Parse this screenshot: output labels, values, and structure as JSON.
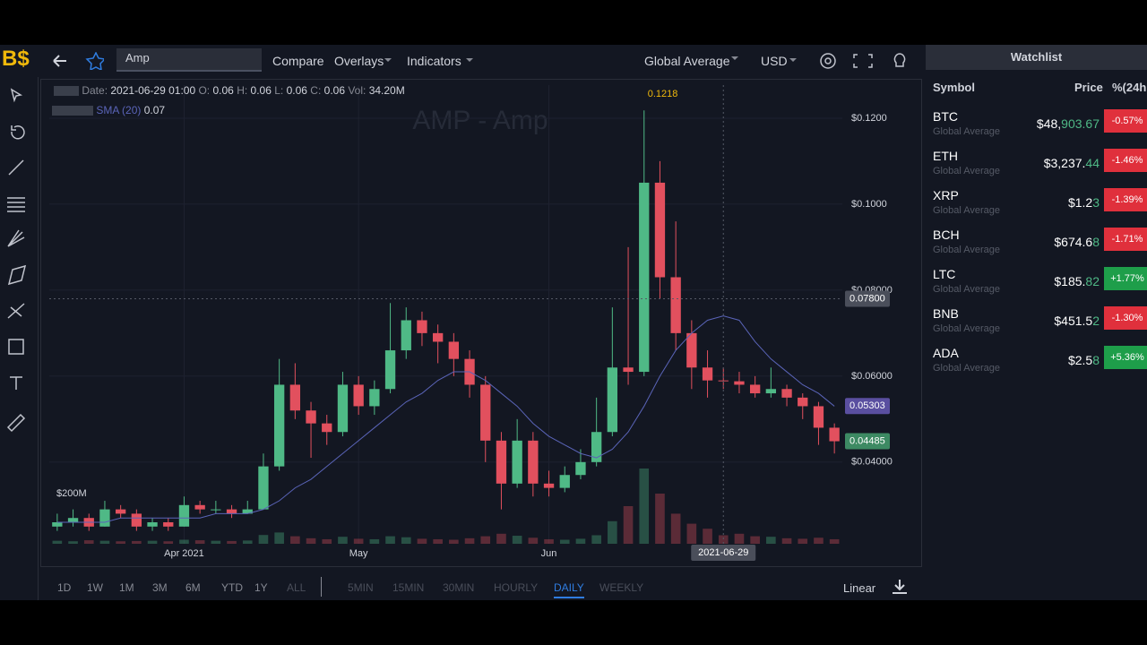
{
  "logo": "B$",
  "toolbar": {
    "search": "Amp",
    "menus": [
      "Compare",
      "Overlays",
      "Indicators"
    ],
    "source": "Global Average",
    "currency": "USD"
  },
  "legend": {
    "date_label": "Date:",
    "date": "2021-06-29 01:00",
    "o_label": "O:",
    "o": 0.06,
    "h_label": "H:",
    "h": 0.06,
    "l_label": "L:",
    "l": 0.06,
    "c_label": "C:",
    "c": 0.06,
    "vol_label": "Vol:",
    "vol": "34.20M",
    "sma_label": "SMA (20)",
    "sma": 0.07
  },
  "chart_data": {
    "type": "candlestick",
    "title": "AMP - Amp",
    "categories": [
      null,
      null,
      null,
      null,
      null,
      null,
      null,
      null,
      "Apr 2021",
      null,
      null,
      null,
      null,
      null,
      null,
      null,
      null,
      null,
      null,
      "May",
      null,
      null,
      null,
      null,
      null,
      null,
      null,
      null,
      null,
      null,
      null,
      "Jun",
      null,
      null,
      null,
      null,
      null,
      null,
      null,
      null,
      null,
      null,
      null,
      null,
      null,
      null,
      null,
      null,
      null,
      null
    ],
    "candles": [
      [
        0.025,
        0.028,
        0.024,
        0.026
      ],
      [
        0.026,
        0.029,
        0.025,
        0.027
      ],
      [
        0.027,
        0.028,
        0.024,
        0.025
      ],
      [
        0.025,
        0.031,
        0.025,
        0.029
      ],
      [
        0.029,
        0.03,
        0.027,
        0.028
      ],
      [
        0.028,
        0.029,
        0.024,
        0.025
      ],
      [
        0.025,
        0.027,
        0.024,
        0.026
      ],
      [
        0.026,
        0.027,
        0.024,
        0.025
      ],
      [
        0.025,
        0.032,
        0.025,
        0.03
      ],
      [
        0.03,
        0.031,
        0.028,
        0.029
      ],
      [
        0.029,
        0.031,
        0.028,
        0.029
      ],
      [
        0.029,
        0.03,
        0.027,
        0.028
      ],
      [
        0.028,
        0.031,
        0.028,
        0.029
      ],
      [
        0.029,
        0.042,
        0.029,
        0.039
      ],
      [
        0.039,
        0.064,
        0.038,
        0.058
      ],
      [
        0.058,
        0.063,
        0.05,
        0.052
      ],
      [
        0.052,
        0.054,
        0.041,
        0.049
      ],
      [
        0.049,
        0.051,
        0.044,
        0.047
      ],
      [
        0.047,
        0.061,
        0.046,
        0.058
      ],
      [
        0.058,
        0.06,
        0.051,
        0.053
      ],
      [
        0.053,
        0.059,
        0.051,
        0.057
      ],
      [
        0.057,
        0.077,
        0.056,
        0.066
      ],
      [
        0.066,
        0.076,
        0.064,
        0.073
      ],
      [
        0.073,
        0.075,
        0.067,
        0.07
      ],
      [
        0.07,
        0.072,
        0.063,
        0.068
      ],
      [
        0.068,
        0.07,
        0.06,
        0.064
      ],
      [
        0.064,
        0.066,
        0.055,
        0.058
      ],
      [
        0.058,
        0.06,
        0.04,
        0.045
      ],
      [
        0.045,
        0.047,
        0.029,
        0.035
      ],
      [
        0.035,
        0.05,
        0.034,
        0.045
      ],
      [
        0.045,
        0.047,
        0.032,
        0.035
      ],
      [
        0.035,
        0.038,
        0.032,
        0.034
      ],
      [
        0.034,
        0.039,
        0.033,
        0.037
      ],
      [
        0.037,
        0.043,
        0.036,
        0.04
      ],
      [
        0.04,
        0.055,
        0.039,
        0.047
      ],
      [
        0.047,
        0.076,
        0.046,
        0.062
      ],
      [
        0.062,
        0.09,
        0.058,
        0.061
      ],
      [
        0.061,
        0.1218,
        0.06,
        0.105
      ],
      [
        0.105,
        0.11,
        0.078,
        0.083
      ],
      [
        0.083,
        0.096,
        0.066,
        0.07
      ],
      [
        0.07,
        0.073,
        0.057,
        0.062
      ],
      [
        0.062,
        0.066,
        0.055,
        0.059
      ],
      [
        0.059,
        0.062,
        0.057,
        0.0588
      ],
      [
        0.0588,
        0.061,
        0.056,
        0.058
      ],
      [
        0.058,
        0.06,
        0.055,
        0.056
      ],
      [
        0.056,
        0.062,
        0.055,
        0.057
      ],
      [
        0.057,
        0.058,
        0.053,
        0.055
      ],
      [
        0.055,
        0.056,
        0.05,
        0.053
      ],
      [
        0.053,
        0.054,
        0.044,
        0.048
      ],
      [
        0.048,
        0.049,
        0.042,
        0.04485
      ]
    ],
    "sma": [
      0.026,
      0.026,
      0.026,
      0.026,
      0.027,
      0.027,
      0.027,
      0.027,
      0.027,
      0.027,
      0.028,
      0.028,
      0.028,
      0.029,
      0.031,
      0.034,
      0.036,
      0.039,
      0.042,
      0.045,
      0.048,
      0.051,
      0.054,
      0.056,
      0.059,
      0.061,
      0.061,
      0.059,
      0.056,
      0.053,
      0.049,
      0.046,
      0.044,
      0.042,
      0.041,
      0.043,
      0.047,
      0.053,
      0.06,
      0.066,
      0.07,
      0.073,
      0.074,
      0.073,
      0.068,
      0.064,
      0.061,
      0.058,
      0.056,
      0.053
    ],
    "volume": [
      12,
      10,
      14,
      12,
      10,
      11,
      12,
      10,
      16,
      14,
      12,
      11,
      13,
      35,
      45,
      30,
      22,
      18,
      28,
      20,
      18,
      30,
      26,
      20,
      18,
      16,
      22,
      30,
      40,
      32,
      24,
      18,
      16,
      20,
      34,
      90,
      150,
      300,
      200,
      120,
      80,
      60,
      34,
      40,
      30,
      28,
      22,
      20,
      24,
      18
    ],
    "ylim": [
      0.021,
      0.1277
    ],
    "yticks": [
      {
        "value": 0.12,
        "label": "$0.1200"
      },
      {
        "value": 0.1,
        "label": "$0.1000"
      },
      {
        "value": 0.08,
        "label": "$0.08000"
      },
      {
        "value": 0.06,
        "label": "$0.06000"
      },
      {
        "value": 0.04,
        "label": "$0.04000"
      }
    ],
    "vlim": [
      0,
      200
    ],
    "vticks": [
      {
        "value": 200,
        "label": "$200M"
      }
    ],
    "high_marker": 0.1218,
    "last_price": 0.04485,
    "sma_last": 0.05303,
    "crosshair": {
      "date": "2021-06-29",
      "price": {
        "value": 0.078,
        "label": "0.07800"
      }
    },
    "up_color": "#4fb986",
    "down_color": "#e2505e",
    "sma_color": "#5a64b8",
    "grid": true
  },
  "bottom_bar": {
    "ranges": [
      "1D",
      "1W",
      "1M",
      "3M",
      "6M",
      "YTD",
      "1Y",
      "ALL"
    ],
    "intervals": [
      "5MIN",
      "15MIN",
      "30MIN",
      "HOURLY",
      "DAILY",
      "WEEKLY"
    ],
    "scale": "Linear"
  },
  "watchlist": {
    "title": "Watchlist",
    "columns": [
      "Symbol",
      "Price",
      "%(24h"
    ],
    "rows": [
      {
        "symbol": "BTC",
        "source": "Global Average",
        "price": "$48,",
        "price_tail": "903.67",
        "change": "-0.57%"
      },
      {
        "symbol": "ETH",
        "source": "Global Average",
        "price": "$3,237.",
        "price_tail": "44",
        "change": "-1.46%"
      },
      {
        "symbol": "XRP",
        "source": "Global Average",
        "price": "$1.2",
        "price_tail": "3",
        "change": "-1.39%"
      },
      {
        "symbol": "BCH",
        "source": "Global Average",
        "price": "$674.6",
        "price_tail": "8",
        "change": "-1.71%"
      },
      {
        "symbol": "LTC",
        "source": "Global Average",
        "price": "$185.",
        "price_tail": "82",
        "change": "+1.77%"
      },
      {
        "symbol": "BNB",
        "source": "Global Average",
        "price": "$451.5",
        "price_tail": "2",
        "change": "-1.30%"
      },
      {
        "symbol": "ADA",
        "source": "Global Average",
        "price": "$2.5",
        "price_tail": "8",
        "change": "+5.36%"
      }
    ]
  }
}
